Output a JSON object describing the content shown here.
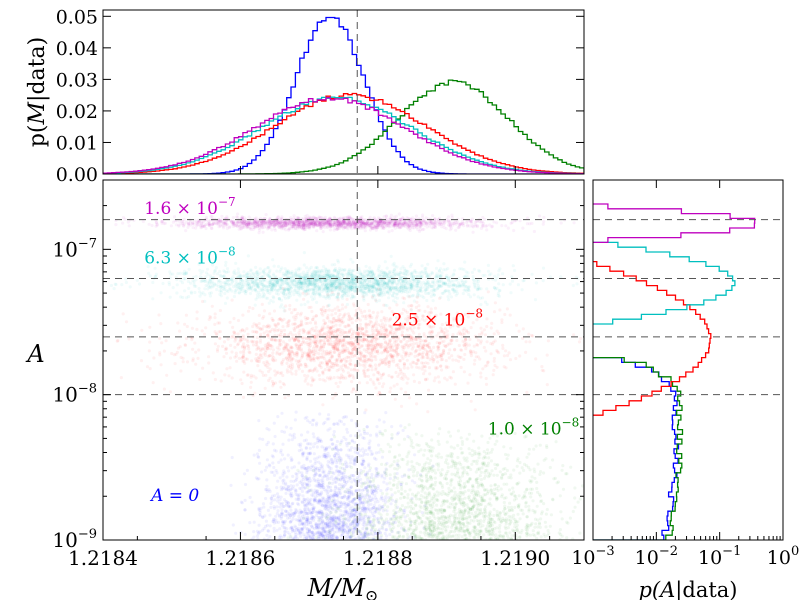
{
  "chart_data": [
    {
      "id": "chirp-mass-marginal",
      "type": "histogram",
      "ylabel_prefix": "p(",
      "ylabel_symbol": "M",
      "ylabel_suffix": "|data)",
      "ylim": [
        0,
        0.052
      ],
      "xlim": [
        1.2184,
        1.2191
      ],
      "yticks": [
        "0.00",
        "0.01",
        "0.02",
        "0.03",
        "0.04",
        "0.05"
      ],
      "ytick_values": [
        0,
        0.01,
        0.02,
        0.03,
        0.04,
        0.05
      ],
      "true_value": 1.21877,
      "series": [
        {
          "name": "A = 0",
          "color": "#0000ff",
          "mean": 1.21873,
          "sigma": 5e-05,
          "peak": 0.05
        },
        {
          "name": "1.0e-8",
          "color": "#008000",
          "mean": 1.21891,
          "sigma": 8e-05,
          "peak": 0.029
        },
        {
          "name": "2.5e-8",
          "color": "#ff0000",
          "mean": 1.21876,
          "sigma": 0.00011,
          "peak": 0.025
        },
        {
          "name": "6.3e-8",
          "color": "#00bfbf",
          "mean": 1.21874,
          "sigma": 0.00011,
          "peak": 0.024
        },
        {
          "name": "1.6e-7",
          "color": "#bf00bf",
          "mean": 1.21873,
          "sigma": 0.00011,
          "peak": 0.024
        }
      ]
    },
    {
      "id": "joint-scatter",
      "type": "scatter",
      "xlabel_symbol": "M",
      "xlabel_suffix": "/M",
      "xlabel_sub": "⊙",
      "ylabel": "A",
      "yscale": "log",
      "xlim": [
        1.2184,
        1.2191
      ],
      "ylim": [
        1e-09,
        3e-07
      ],
      "xticks": [
        "1.2184",
        "1.2186",
        "1.2188",
        "1.2190"
      ],
      "xtick_values": [
        1.2184,
        1.2186,
        1.2188,
        1.219
      ],
      "yticks": [
        {
          "base": "10",
          "exp": "−9",
          "value": 1e-09
        },
        {
          "base": "10",
          "exp": "−8",
          "value": 1e-08
        },
        {
          "base": "10",
          "exp": "−7",
          "value": 1e-07
        }
      ],
      "true_amplitudes": [
        1e-08,
        2.5e-08,
        6.3e-08,
        1.6e-07
      ],
      "annotations": [
        {
          "mant": "1.6 × 10",
          "exp": "−7",
          "color": "#bf00bf",
          "x": 1.21846,
          "y": 1.75e-07
        },
        {
          "mant": "6.3 × 10",
          "exp": "−8",
          "color": "#00bfbf",
          "x": 1.21846,
          "y": 8e-08
        },
        {
          "mant": "2.5 × 10",
          "exp": "−8",
          "color": "#ff0000",
          "x": 1.21882,
          "y": 3e-08
        },
        {
          "mant": "1.0 × 10",
          "exp": "−8",
          "color": "#008000",
          "x": 1.21896,
          "y": 5.3e-09
        },
        {
          "mant": "A = 0",
          "exp": "",
          "color": "#0000ff",
          "x": 1.21847,
          "y": 1.85e-09
        }
      ],
      "clouds": [
        {
          "name": "A = 0",
          "color": "#0000ff",
          "xmean": 1.21873,
          "xsigma": 5e-05,
          "ylog_min": -9.0,
          "ylog_max": -8.1,
          "n": 1700
        },
        {
          "name": "1.0e-8",
          "color": "#008000",
          "xmean": 1.21891,
          "xsigma": 8e-05,
          "ylog_min": -9.0,
          "ylog_max": -8.2,
          "n": 1500
        },
        {
          "name": "2.5e-8",
          "color": "#ff0000",
          "xmean": 1.21876,
          "xsigma": 0.00011,
          "ylog_mean": -7.66,
          "ylog_sigma": 0.13,
          "n": 2000
        },
        {
          "name": "6.3e-8",
          "color": "#00bfbf",
          "xmean": 1.21874,
          "xsigma": 0.00011,
          "ylog_mean": -7.23,
          "ylog_sigma": 0.055,
          "n": 2000
        },
        {
          "name": "1.6e-7",
          "color": "#bf00bf",
          "xmean": 1.21873,
          "xsigma": 0.00011,
          "ylog_mean": -6.82,
          "ylog_sigma": 0.02,
          "n": 1700
        }
      ]
    },
    {
      "id": "amplitude-marginal",
      "type": "histogram",
      "xscale": "log",
      "xlabel_prefix": "p(",
      "xlabel_symbol": "A",
      "xlabel_suffix": "|data)",
      "xlim": [
        0.001,
        1
      ],
      "xticks": [
        {
          "base": "10",
          "exp": "−3",
          "value": 0.001
        },
        {
          "base": "10",
          "exp": "−2",
          "value": 0.01
        },
        {
          "base": "10",
          "exp": "−1",
          "value": 0.1
        },
        {
          "base": "10",
          "exp": "0",
          "value": 1
        }
      ],
      "series": [
        {
          "name": "A = 0",
          "color": "#0000ff",
          "kind": "upper",
          "low": 0.013,
          "high": 0.02
        },
        {
          "name": "1.0e-8",
          "color": "#008000",
          "kind": "upper",
          "low": 0.015,
          "high": 0.024
        },
        {
          "name": "2.5e-8",
          "color": "#ff0000",
          "kind": "peak",
          "ylog_mean": -7.62,
          "ylog_sigma": 0.18,
          "peak": 0.072
        },
        {
          "name": "6.3e-8",
          "color": "#00bfbf",
          "kind": "peak",
          "ylog_mean": -7.23,
          "ylog_sigma": 0.09,
          "peak": 0.17
        },
        {
          "name": "1.6e-7",
          "color": "#bf00bf",
          "kind": "peak",
          "ylog_mean": -6.82,
          "ylog_sigma": 0.035,
          "peak": 0.4
        }
      ]
    }
  ]
}
